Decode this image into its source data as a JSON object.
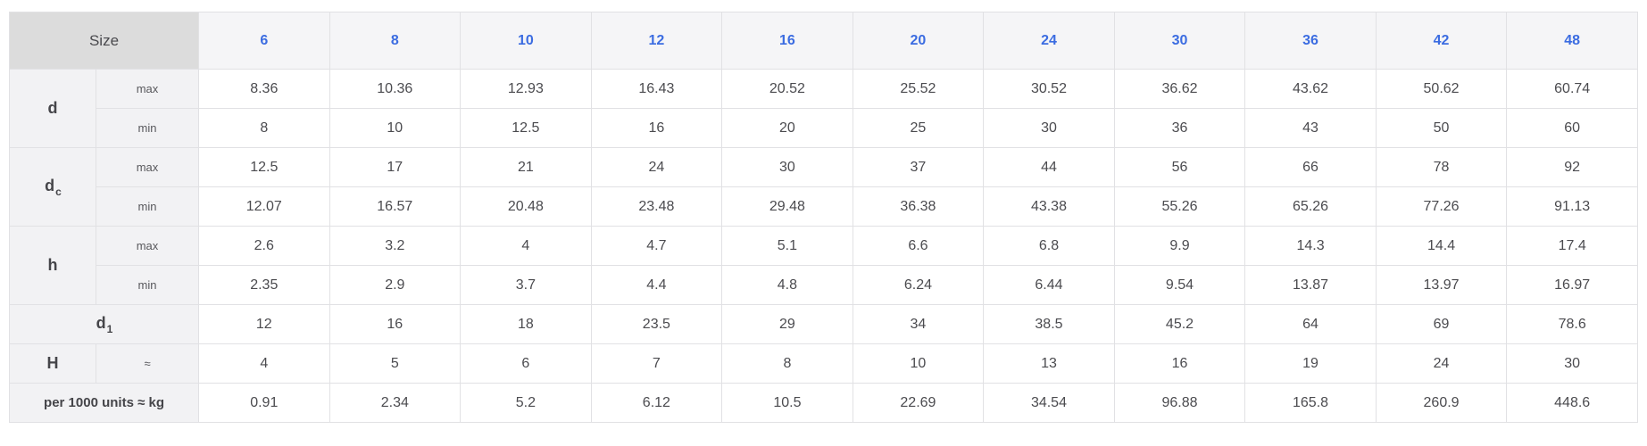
{
  "header": {
    "corner_label": "Size",
    "size_columns": [
      "6",
      "8",
      "10",
      "12",
      "16",
      "20",
      "24",
      "30",
      "36",
      "42",
      "48"
    ]
  },
  "body": [
    {
      "type": "group",
      "label": "d",
      "subscript": "",
      "rows": [
        {
          "sublabel": "max",
          "values": [
            "8.36",
            "10.36",
            "12.93",
            "16.43",
            "20.52",
            "25.52",
            "30.52",
            "36.62",
            "43.62",
            "50.62",
            "60.74"
          ]
        },
        {
          "sublabel": "min",
          "values": [
            "8",
            "10",
            "12.5",
            "16",
            "20",
            "25",
            "30",
            "36",
            "43",
            "50",
            "60"
          ]
        }
      ]
    },
    {
      "type": "group",
      "label": "d",
      "subscript": "c",
      "rows": [
        {
          "sublabel": "max",
          "values": [
            "12.5",
            "17",
            "21",
            "24",
            "30",
            "37",
            "44",
            "56",
            "66",
            "78",
            "92"
          ]
        },
        {
          "sublabel": "min",
          "values": [
            "12.07",
            "16.57",
            "20.48",
            "23.48",
            "29.48",
            "36.38",
            "43.38",
            "55.26",
            "65.26",
            "77.26",
            "91.13"
          ]
        }
      ]
    },
    {
      "type": "group",
      "label": "h",
      "subscript": "",
      "rows": [
        {
          "sublabel": "max",
          "values": [
            "2.6",
            "3.2",
            "4",
            "4.7",
            "5.1",
            "6.6",
            "6.8",
            "9.9",
            "14.3",
            "14.4",
            "17.4"
          ]
        },
        {
          "sublabel": "min",
          "values": [
            "2.35",
            "2.9",
            "3.7",
            "4.4",
            "4.8",
            "6.24",
            "6.44",
            "9.54",
            "13.87",
            "13.97",
            "16.97"
          ]
        }
      ]
    },
    {
      "type": "span",
      "label": "d",
      "subscript": "1",
      "emphasis": "",
      "values": [
        "12",
        "16",
        "18",
        "23.5",
        "29",
        "34",
        "38.5",
        "45.2",
        "64",
        "69",
        "78.6"
      ]
    },
    {
      "type": "split",
      "label": "H",
      "subscript": "",
      "sublabel": "≈",
      "values": [
        "4",
        "5",
        "6",
        "7",
        "8",
        "10",
        "13",
        "16",
        "19",
        "24",
        "30"
      ]
    },
    {
      "type": "span",
      "label": "per 1000 units ≈ kg",
      "subscript": "",
      "emphasis": "small-bold",
      "values": [
        "0.91",
        "2.34",
        "5.2",
        "6.12",
        "10.5",
        "22.69",
        "34.54",
        "96.88",
        "165.8",
        "260.9",
        "448.6"
      ]
    }
  ],
  "colors": {
    "header_accent": "#3b6ce1",
    "corner_bg": "#dcdcdc",
    "header_bg": "#f5f5f7",
    "label_bg": "#f2f2f4",
    "border": "#e1e1e4",
    "text": "#4b4b4f"
  }
}
